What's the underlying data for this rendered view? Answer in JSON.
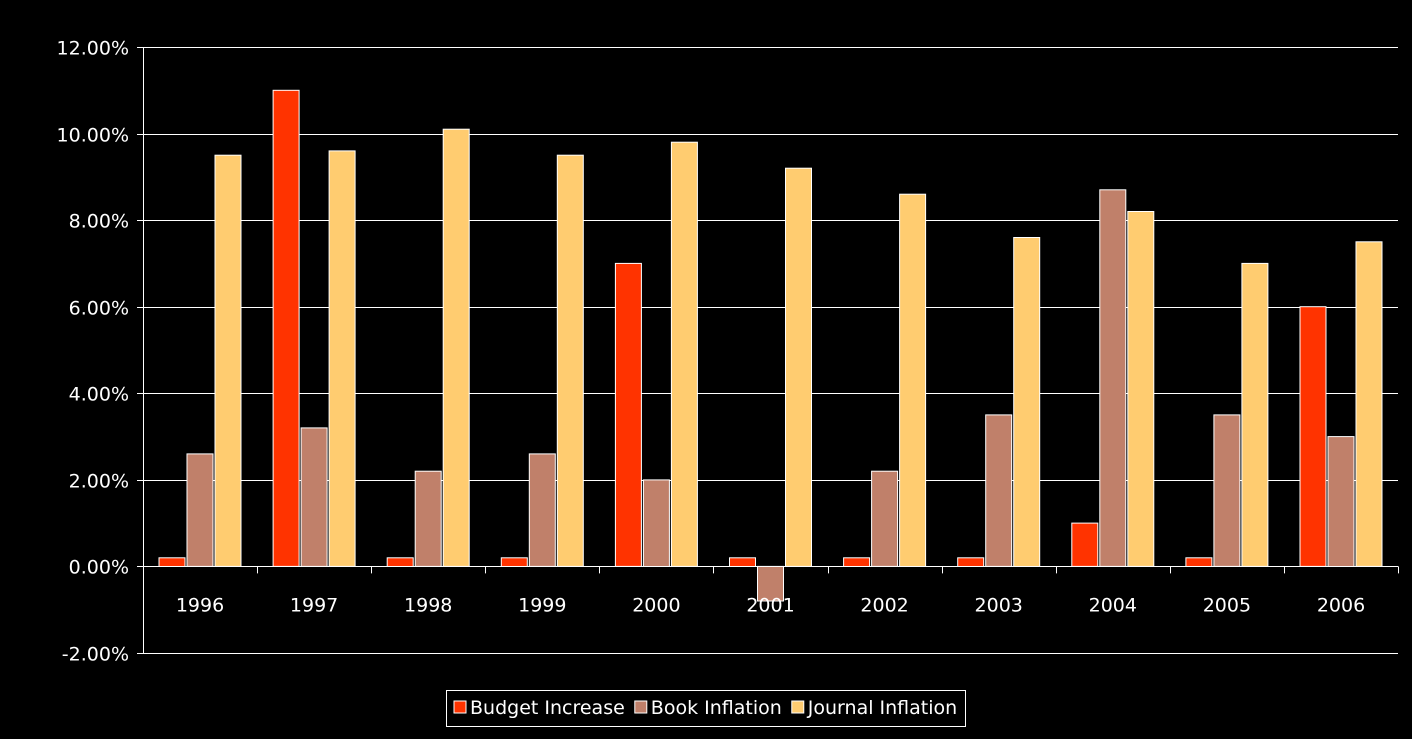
{
  "chart_data": {
    "type": "bar",
    "title": "",
    "xlabel": "",
    "ylabel": "",
    "categories": [
      "1996",
      "1997",
      "1998",
      "1999",
      "2000",
      "2001",
      "2002",
      "2003",
      "2004",
      "2005",
      "2006"
    ],
    "series": [
      {
        "name": "Budget Increase",
        "color": "#ff3300",
        "values": [
          0.2,
          11.0,
          0.2,
          0.2,
          7.0,
          0.2,
          0.2,
          0.2,
          1.0,
          0.2,
          6.0
        ]
      },
      {
        "name": "Book Inflation",
        "color": "#c0806a",
        "values": [
          2.6,
          3.2,
          2.2,
          2.6,
          2.0,
          -0.8,
          2.2,
          3.5,
          8.7,
          3.5,
          3.0
        ]
      },
      {
        "name": "Journal Inflation",
        "color": "#ffcc70",
        "values": [
          9.5,
          9.6,
          10.1,
          9.5,
          9.8,
          9.2,
          8.6,
          7.6,
          8.2,
          7.0,
          7.5
        ]
      }
    ],
    "ylim": [
      -2,
      12
    ],
    "yticks": [
      12,
      10,
      8,
      6,
      4,
      2,
      0,
      -2
    ],
    "ytick_labels": [
      "12.00%",
      "10.00%",
      "8.00%",
      "6.00%",
      "4.00%",
      "2.00%",
      "0.00%",
      "-2.00%"
    ],
    "grid": true,
    "legend_position": "bottom",
    "background_color": "#000000",
    "axis_color": "#ffffff"
  }
}
